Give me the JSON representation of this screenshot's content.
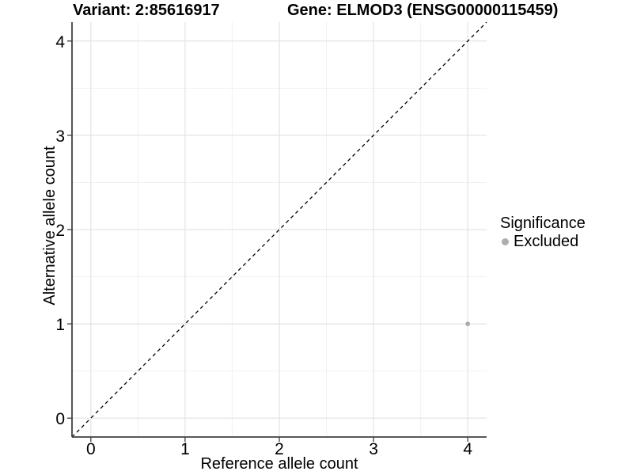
{
  "chart_data": {
    "type": "scatter",
    "title_left": "Variant: 2:85616917",
    "title_right": "Gene: ELMOD3 (ENSG00000115459)",
    "xlabel": "Reference allele count",
    "ylabel": "Alternative allele count",
    "xlim": [
      -0.2,
      4.2
    ],
    "ylim": [
      -0.2,
      4.2
    ],
    "x_ticks": [
      0,
      1,
      2,
      3,
      4
    ],
    "y_ticks": [
      0,
      1,
      2,
      3,
      4
    ],
    "x_minor_ticks": [
      0.5,
      1.5,
      2.5,
      3.5
    ],
    "y_minor_ticks": [
      0.5,
      1.5,
      2.5,
      3.5
    ],
    "grid": "major+minor",
    "identity_line": {
      "style": "dashed",
      "slope": 1,
      "intercept": 0,
      "color": "#000000"
    },
    "series": [
      {
        "name": "Excluded",
        "color": "#a8a8a8",
        "points": [
          {
            "x": 4,
            "y": 1
          }
        ]
      }
    ],
    "legend": {
      "title": "Significance",
      "position": "right",
      "entries": [
        {
          "label": "Excluded",
          "color": "#aeaeae"
        }
      ]
    },
    "style": {
      "background": "#ffffff",
      "major_grid": "#e3e3e3",
      "minor_grid": "#f1f1f1",
      "axis_color": "#404040",
      "text_color": "#000000"
    }
  }
}
